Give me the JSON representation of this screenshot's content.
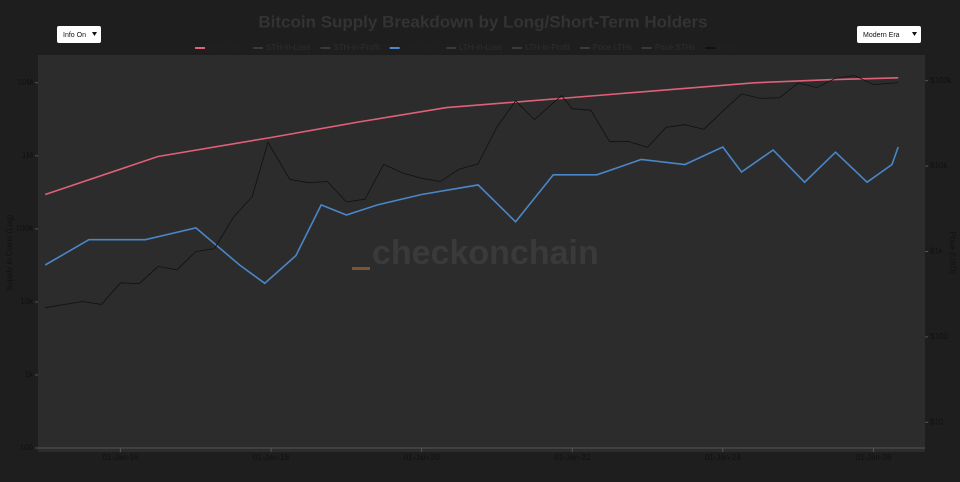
{
  "controls": {
    "left": "Info On",
    "right": "Modern Era"
  },
  "watermark": "checkonchain",
  "chart_data": {
    "type": "line",
    "title": "Bitcoin Supply Breakdown by Long/Short-Term Holders",
    "ylabel": "Supply in Coins (Log)",
    "y2label": "Price (USD)",
    "legend": [
      {
        "name": "STH Total",
        "color": "#e0607a",
        "active": true
      },
      {
        "name": "STH-in-Loss",
        "color": "#a83a55",
        "active": false
      },
      {
        "name": "STH-in-Profit",
        "color": "#c04a64",
        "active": false
      },
      {
        "name": "LTH Total",
        "color": "#4a86c8",
        "active": true
      },
      {
        "name": "LTH-in-Loss",
        "color": "#2f5f95",
        "active": false
      },
      {
        "name": "LTH-in-Profit",
        "color": "#3e78ba",
        "active": false
      },
      {
        "name": "Price LTHs",
        "color": "#444444",
        "active": false
      },
      {
        "name": "Price STHs",
        "color": "#7a3a4a",
        "active": false
      },
      {
        "name": "Price",
        "color": "#111111",
        "active": true
      }
    ],
    "series": [
      {
        "name": "STH Total",
        "color": "#e0607a",
        "axis": "y",
        "x": [
          "2015-01-01",
          "2016-07-01",
          "2018-01-01",
          "2019-03-01",
          "2020-05-01",
          "2022-06-01",
          "2024-06-01",
          "2025-06-01",
          "2026-05-01"
        ],
        "values": [
          295000,
          980000,
          1780000,
          2900000,
          4570000,
          6800000,
          10000000,
          11000000,
          11700000
        ]
      },
      {
        "name": "LTH Total",
        "color": "#4a86c8",
        "axis": "y",
        "x": [
          "2015-01-01",
          "2015-08-01",
          "2016-05-01",
          "2017-01-01",
          "2017-08-01",
          "2017-12-01",
          "2018-05-01",
          "2018-09-01",
          "2019-01-01",
          "2019-06-01",
          "2020-01-01",
          "2020-10-01",
          "2021-04-01",
          "2021-10-01",
          "2022-05-01",
          "2022-12-01",
          "2023-07-01",
          "2024-01-01",
          "2024-04-01",
          "2024-09-01",
          "2025-02-01",
          "2025-07-01",
          "2025-12-01",
          "2026-04-01",
          "2026-05-01"
        ],
        "values": [
          32000,
          71000,
          71000,
          103000,
          32000,
          18000,
          43000,
          213000,
          155000,
          213000,
          295000,
          400000,
          125000,
          550000,
          550000,
          890000,
          760000,
          1320000,
          600000,
          1200000,
          436000,
          1120000,
          436000,
          760000,
          1320000
        ]
      },
      {
        "name": "Price",
        "color": "#111111",
        "axis": "y2",
        "x": [
          "2015-01-01",
          "2015-07-01",
          "2015-10-01",
          "2016-01-01",
          "2016-04-01",
          "2016-07-01",
          "2016-10-01",
          "2017-01-01",
          "2017-04-01",
          "2017-07-01",
          "2017-10-01",
          "2017-12-17",
          "2018-04-01",
          "2018-07-01",
          "2018-10-01",
          "2019-01-01",
          "2019-04-01",
          "2019-07-01",
          "2019-10-01",
          "2020-01-01",
          "2020-04-01",
          "2020-07-01",
          "2020-10-01",
          "2021-01-01",
          "2021-04-01",
          "2021-07-01",
          "2021-11-10",
          "2022-01-01",
          "2022-04-01",
          "2022-07-01",
          "2022-10-01",
          "2023-01-01",
          "2023-04-01",
          "2023-07-01",
          "2023-10-01",
          "2024-01-01",
          "2024-04-01",
          "2024-07-01",
          "2024-10-01",
          "2025-01-01",
          "2025-04-01",
          "2025-07-01",
          "2025-10-01",
          "2026-01-01",
          "2026-05-01"
        ],
        "values": [
          220,
          260,
          240,
          430,
          420,
          670,
          610,
          1000,
          1080,
          2500,
          4400,
          19000,
          7000,
          6400,
          6600,
          3800,
          4100,
          10500,
          8300,
          7200,
          6600,
          9200,
          10600,
          29000,
          58000,
          35000,
          67000,
          47000,
          45000,
          19300,
          19400,
          16600,
          28500,
          30500,
          27000,
          44000,
          70000,
          62000,
          63000,
          94000,
          83000,
          107000,
          115000,
          90000,
          95000
        ]
      }
    ],
    "xlim": [
      "2014-11-27",
      "2026-09-08"
    ],
    "xticks": [
      {
        "value": "2016-01-01",
        "label": "01-Jan-16"
      },
      {
        "value": "2018-01-01",
        "label": "01-Jan-18"
      },
      {
        "value": "2020-01-01",
        "label": "01-Jan-20"
      },
      {
        "value": "2022-01-01",
        "label": "01-Jan-22"
      },
      {
        "value": "2024-01-01",
        "label": "01-Jan-24"
      },
      {
        "value": "2026-01-01",
        "label": "01-Jan-26"
      }
    ],
    "ylog": true,
    "ylim": [
      100,
      24000000
    ],
    "yticks": [
      100,
      {
        "value": 1000,
        "label": "1k"
      },
      {
        "value": 10000,
        "label": "10k"
      },
      {
        "value": 100000,
        "label": "100k"
      },
      {
        "value": 1000000,
        "label": "1M"
      },
      {
        "value": 10000000,
        "label": "10M"
      }
    ],
    "y2log": true,
    "y2lim": [
      5,
      200000
    ],
    "y2ticks": [
      {
        "value": 10,
        "label": "$10"
      },
      {
        "value": 100,
        "label": "$100"
      },
      {
        "value": 1000,
        "label": "$1k"
      },
      {
        "value": 10000,
        "label": "$10k"
      },
      {
        "value": 100000,
        "label": "$100k"
      }
    ],
    "grid": false
  }
}
